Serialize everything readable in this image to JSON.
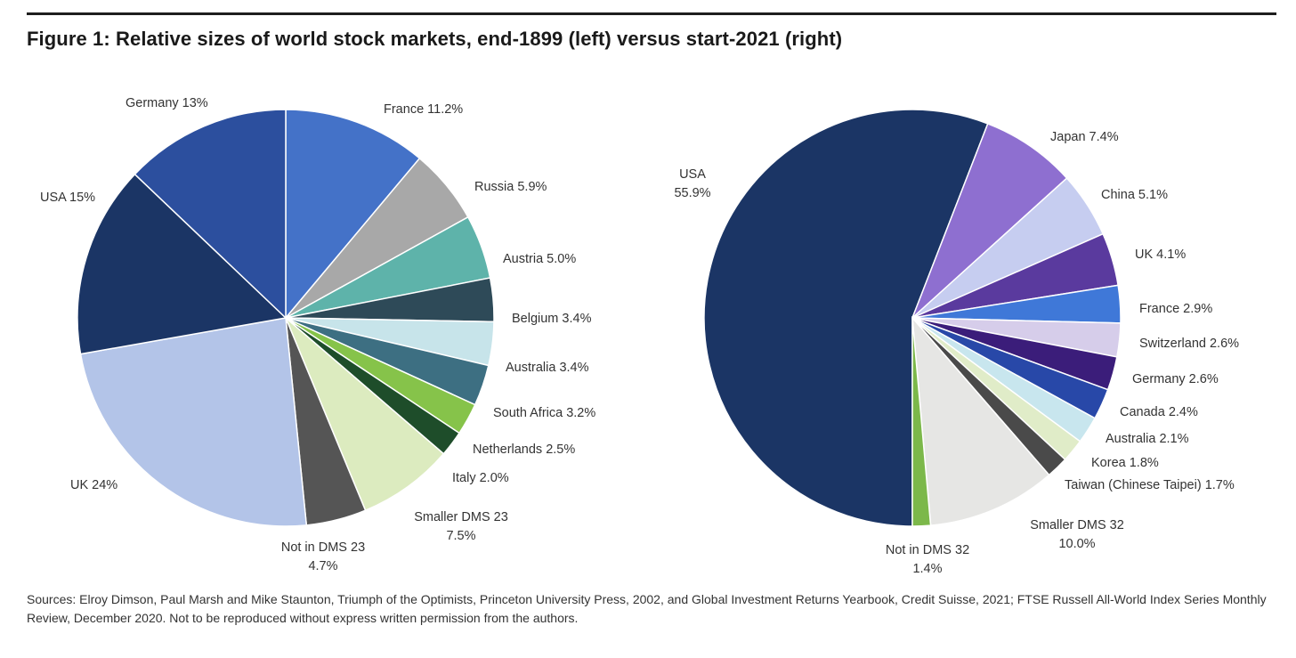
{
  "figure": {
    "title": "Figure 1: Relative sizes of world stock markets, end-1899 (left) versus start-2021 (right)",
    "sources": "Sources: Elroy Dimson, Paul Marsh and Mike Staunton, Triumph of the Optimists, Princeton University Press, 2002, and Global Investment Returns Yearbook, Credit Suisse, 2021; FTSE Russell All-World Index Series Monthly Review, December 2020. Not to be reproduced without express written permission from the authors."
  },
  "chart_data": [
    {
      "type": "pie",
      "title": "end-1899",
      "start": "top",
      "direction": "clockwise",
      "slices": [
        {
          "label": "France",
          "value": 11.2,
          "text": [
            "France 11.2%"
          ],
          "color": "#4472c8"
        },
        {
          "label": "Russia",
          "value": 5.9,
          "text": [
            "Russia 5.9%"
          ],
          "color": "#a8a8a8"
        },
        {
          "label": "Austria",
          "value": 5.0,
          "text": [
            "Austria 5.0%"
          ],
          "color": "#5eb3aa"
        },
        {
          "label": "Belgium",
          "value": 3.4,
          "text": [
            "Belgium 3.4%"
          ],
          "color": "#2e4a58"
        },
        {
          "label": "Australia",
          "value": 3.4,
          "text": [
            "Australia 3.4%"
          ],
          "color": "#c7e4ea"
        },
        {
          "label": "South Africa",
          "value": 3.2,
          "text": [
            "South Africa 3.2%"
          ],
          "color": "#3d6f82"
        },
        {
          "label": "Netherlands",
          "value": 2.5,
          "text": [
            "Netherlands 2.5%"
          ],
          "color": "#86c34a"
        },
        {
          "label": "Italy",
          "value": 2.0,
          "text": [
            "Italy 2.0%"
          ],
          "color": "#1e4d2a"
        },
        {
          "label": "Smaller DMS 23",
          "value": 7.5,
          "text": [
            "Smaller DMS 23",
            "7.5%"
          ],
          "color": "#dcebbf"
        },
        {
          "label": "Not in DMS 23",
          "value": 4.7,
          "text": [
            "Not in DMS 23",
            "4.7%"
          ],
          "color": "#555555"
        },
        {
          "label": "UK",
          "value": 24,
          "text": [
            "UK 24%"
          ],
          "color": "#b3c4e8"
        },
        {
          "label": "USA",
          "value": 15,
          "text": [
            "USA 15%"
          ],
          "color": "#1b3565"
        },
        {
          "label": "Germany",
          "value": 13,
          "text": [
            "Germany 13%"
          ],
          "color": "#2c4f9e"
        }
      ]
    },
    {
      "type": "pie",
      "title": "start-2021",
      "start": "bottom",
      "direction": "clockwise",
      "slices": [
        {
          "label": "USA",
          "value": 55.9,
          "text": [
            "USA",
            "55.9%"
          ],
          "color": "#1b3565"
        },
        {
          "label": "Japan",
          "value": 7.4,
          "text": [
            "Japan 7.4%"
          ],
          "color": "#8e6fd0"
        },
        {
          "label": "China",
          "value": 5.1,
          "text": [
            "China 5.1%"
          ],
          "color": "#c6cdf0"
        },
        {
          "label": "UK",
          "value": 4.1,
          "text": [
            "UK 4.1%"
          ],
          "color": "#5a3a9e"
        },
        {
          "label": "France",
          "value": 2.9,
          "text": [
            "France 2.9%"
          ],
          "color": "#3f78d8"
        },
        {
          "label": "Switzerland",
          "value": 2.6,
          "text": [
            "Switzerland 2.6%"
          ],
          "color": "#d6cdea"
        },
        {
          "label": "Germany",
          "value": 2.6,
          "text": [
            "Germany 2.6%"
          ],
          "color": "#3b1d7a"
        },
        {
          "label": "Canada",
          "value": 2.4,
          "text": [
            "Canada 2.4%"
          ],
          "color": "#2848a8"
        },
        {
          "label": "Australia",
          "value": 2.1,
          "text": [
            "Australia 2.1%"
          ],
          "color": "#c8e6ee"
        },
        {
          "label": "Korea",
          "value": 1.8,
          "text": [
            "Korea 1.8%"
          ],
          "color": "#e0ecc8"
        },
        {
          "label": "Taiwan (Chinese Taipei)",
          "value": 1.7,
          "text": [
            "Taiwan (Chinese Taipei) 1.7%"
          ],
          "color": "#4a4a4a"
        },
        {
          "label": "Smaller DMS 32",
          "value": 10.0,
          "text": [
            "Smaller DMS 32",
            "10.0%"
          ],
          "color": "#e6e6e4"
        },
        {
          "label": "Not in DMS 32",
          "value": 1.4,
          "text": [
            "Not in DMS 32",
            "1.4%"
          ],
          "color": "#7cb84a"
        }
      ]
    }
  ]
}
